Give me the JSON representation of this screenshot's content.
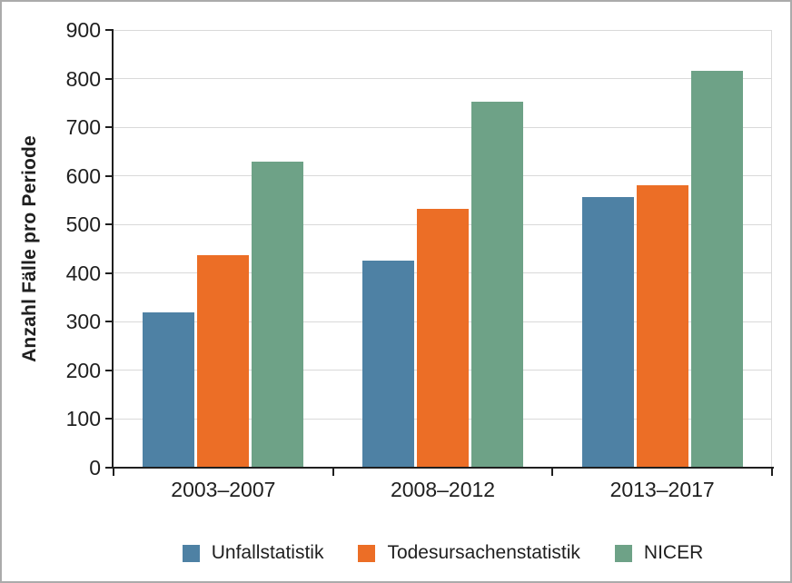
{
  "chart_data": {
    "type": "bar",
    "title": "",
    "ylabel": "Anzahl Fälle pro Periode",
    "xlabel": "",
    "ylim": [
      0,
      900
    ],
    "yticks": [
      0,
      100,
      200,
      300,
      400,
      500,
      600,
      700,
      800,
      900
    ],
    "grid": true,
    "legend_position": "bottom",
    "categories": [
      "2003–2007",
      "2008–2012",
      "2013–2017"
    ],
    "series": [
      {
        "name": "Unfallstatistik",
        "color": "#4e81a4",
        "values": [
          320,
          425,
          557
        ]
      },
      {
        "name": "Todesursachenstatistik",
        "color": "#ec6e26",
        "values": [
          437,
          533,
          580
        ]
      },
      {
        "name": "NICER",
        "color": "#6ea287",
        "values": [
          629,
          753,
          817
        ]
      }
    ]
  },
  "styles": {
    "axis_color": "#1f1f1f",
    "grid_color": "#d9d9d9",
    "frame_border_color": "#ababab",
    "background_color": "#ffffff"
  }
}
